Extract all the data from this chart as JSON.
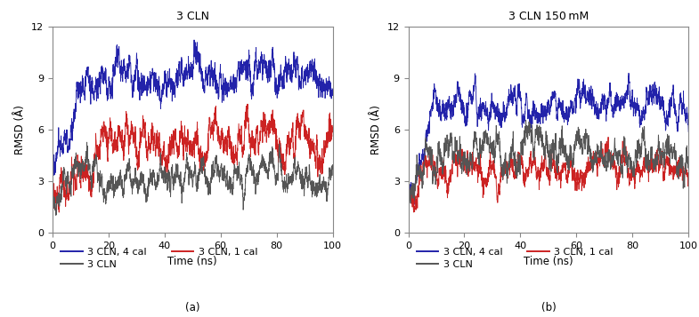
{
  "title_left": "3 CLN",
  "title_right": "3 CLN 150 mM",
  "xlabel": "Time (ns)",
  "ylabel": "RMSD (Å)",
  "xlim": [
    0,
    100
  ],
  "ylim": [
    0,
    12
  ],
  "yticks": [
    0,
    3,
    6,
    9,
    12
  ],
  "xticks": [
    0,
    20,
    40,
    60,
    80,
    100
  ],
  "label_a": "(a)",
  "label_b": "(b)",
  "legend_entries": [
    {
      "label": "3 CLN, 4 cal",
      "color": "#2222aa"
    },
    {
      "label": "3 CLN, 1 cal",
      "color": "#cc2222"
    },
    {
      "label": "3 CLN",
      "color": "#555555"
    }
  ],
  "seed": 42,
  "left": {
    "blue": {
      "mean": 9.0,
      "std": 0.65,
      "init": 3.5,
      "rise_end": 13
    },
    "red": {
      "mean": 5.5,
      "std": 0.75,
      "init": 2.5,
      "rise_end": 30
    },
    "black": {
      "mean": 3.3,
      "std": 0.55,
      "init": 2.2,
      "rise_end": 5
    }
  },
  "right": {
    "blue": {
      "mean": 7.4,
      "std": 0.55,
      "init": 2.0,
      "rise_end": 10
    },
    "red": {
      "mean": 3.6,
      "std": 0.55,
      "init": 2.0,
      "rise_end": 8
    },
    "black": {
      "mean": 4.6,
      "std": 0.65,
      "init": 2.0,
      "rise_end": 8
    }
  },
  "n_points": 2000,
  "linewidth": 0.65,
  "background_color": "#ffffff",
  "spine_color": "#888888",
  "title_fontsize": 9,
  "label_fontsize": 8.5,
  "tick_fontsize": 8,
  "legend_fontsize": 8
}
